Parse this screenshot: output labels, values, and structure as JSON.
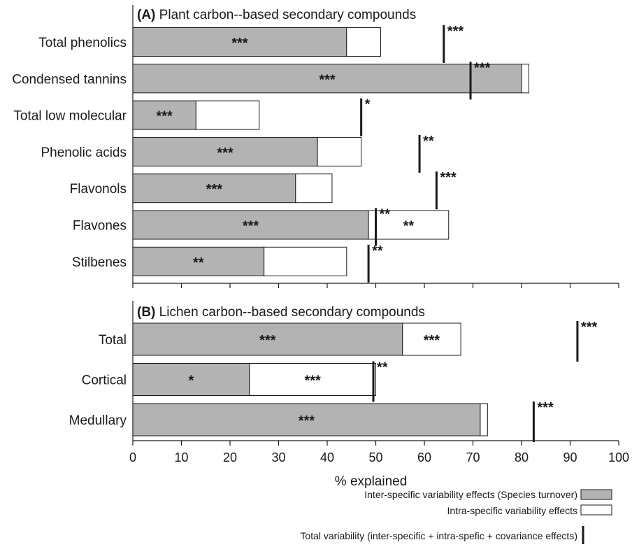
{
  "chart_data": [
    {
      "type": "bar",
      "panel_letter": "(A)",
      "title": "Plant carbon--based secondary compounds",
      "categories": [
        "Total phenolics",
        "Condensed tannins",
        "Total low molecular",
        "Phenolic acids",
        "Flavonols",
        "Flavones",
        "Stilbenes"
      ],
      "series": [
        {
          "name": "Inter-specific variability effects (Species turnover)",
          "values": [
            44,
            80,
            13,
            38,
            33.5,
            48.5,
            27
          ],
          "color": "#b3b3b3"
        },
        {
          "name": "Intra-specific variability effects",
          "values": [
            7,
            1.5,
            13,
            9,
            7.5,
            16.5,
            17
          ],
          "color": "#ffffff"
        },
        {
          "name": "Total variability (inter-specific + intra-spefic + covariance effects)",
          "values": [
            64,
            69.5,
            47,
            59,
            62.5,
            50,
            48.5
          ],
          "color": "#1a1a1a"
        }
      ],
      "significance": {
        "inter": [
          "***",
          "***",
          "***",
          "***",
          "***",
          "***",
          "**"
        ],
        "intra": [
          "",
          "",
          "",
          "",
          "",
          "**",
          ""
        ],
        "total": [
          "***",
          "***",
          "*",
          "**",
          "***",
          "**",
          "**"
        ]
      },
      "xlim": [
        0,
        100
      ],
      "xticks": [],
      "xlabel": ""
    },
    {
      "type": "bar",
      "panel_letter": "(B)",
      "title": "Lichen carbon--based secondary compounds",
      "categories": [
        "Total",
        "Cortical",
        "Medullary"
      ],
      "series": [
        {
          "name": "Inter-specific variability effects (Species turnover)",
          "values": [
            55.5,
            24,
            71.5
          ],
          "color": "#b3b3b3"
        },
        {
          "name": "Intra-specific variability effects",
          "values": [
            12,
            26,
            1.5
          ],
          "color": "#ffffff"
        },
        {
          "name": "Total variability (inter-specific + intra-spefic + covariance effects)",
          "values": [
            91.5,
            49.5,
            82.5
          ],
          "color": "#1a1a1a"
        }
      ],
      "significance": {
        "inter": [
          "***",
          "*",
          "***"
        ],
        "intra": [
          "***",
          "***",
          ""
        ],
        "total": [
          "***",
          "**",
          "***"
        ]
      },
      "xlim": [
        0,
        100
      ],
      "xticks": [
        "0",
        "10",
        "20",
        "30",
        "40",
        "50",
        "60",
        "70",
        "80",
        "90",
        "100"
      ],
      "xlabel": "% explained"
    }
  ],
  "legend": {
    "inter_label": "Inter-specific variability effects (Species turnover)",
    "intra_label": "Intra-specific variability effects",
    "total_label": "Total variability (inter-specific + intra-spefic + covariance effects)"
  }
}
